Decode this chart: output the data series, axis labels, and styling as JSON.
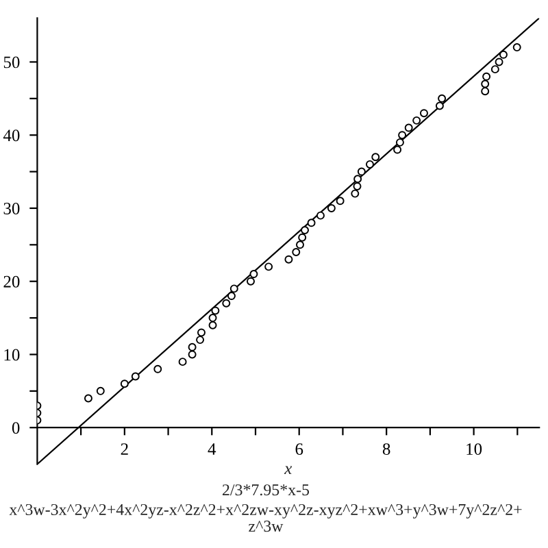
{
  "chart_data": {
    "type": "scatter",
    "xlabel": "x",
    "annotations": [
      "2/3*7.95*x-5",
      "x^3w-3x^2y^2+4x^2yz-x^2z^2+x^2zw-xy^2z-xyz^2+xw^3+y^3w+7y^2z^2+z^3w"
    ],
    "xlim": [
      0,
      11.5
    ],
    "ylim": [
      -5,
      56
    ],
    "xticks": [
      {
        "value": 1,
        "label": null
      },
      2,
      {
        "value": 3,
        "label": null
      },
      4,
      {
        "value": 5,
        "label": null
      },
      6,
      {
        "value": 7,
        "label": null
      },
      8,
      {
        "value": 9,
        "label": null
      },
      10,
      {
        "value": 11,
        "label": null
      }
    ],
    "yticks": [
      0,
      {
        "value": 5,
        "label": null
      },
      10,
      {
        "value": 15,
        "label": null
      },
      20,
      {
        "value": 25,
        "label": null
      },
      30,
      {
        "value": 35,
        "label": null
      },
      40,
      {
        "value": 45,
        "label": null
      },
      50
    ],
    "series": [
      {
        "color": "#000000",
        "marker": "circle",
        "x": [
          0,
          0,
          0,
          1.17,
          1.45,
          2.0,
          2.25,
          2.76,
          3.33,
          3.55,
          3.55,
          3.73,
          3.76,
          4.02,
          4.02,
          4.08,
          4.33,
          4.45,
          4.51,
          4.89,
          4.96,
          5.3,
          5.76,
          5.93,
          6.02,
          6.07,
          6.13,
          6.28,
          6.49,
          6.74,
          6.94,
          7.28,
          7.33,
          7.34,
          7.43,
          7.62,
          7.75,
          8.25,
          8.31,
          8.36,
          8.51,
          8.69,
          8.86,
          9.22,
          9.27,
          10.26,
          10.26,
          10.29,
          10.49,
          10.58,
          10.68,
          10.99
        ],
        "values": [
          1,
          2,
          3,
          4,
          5,
          6,
          7,
          8,
          9,
          10,
          11,
          12,
          13,
          14,
          15,
          16,
          17,
          18,
          19,
          20,
          21,
          22,
          23,
          24,
          25,
          26,
          27,
          28,
          29,
          30,
          31,
          32,
          33,
          34,
          35,
          36,
          37,
          38,
          39,
          40,
          41,
          42,
          43,
          44,
          45,
          46,
          47,
          48,
          49,
          50,
          51,
          52
        ]
      },
      {
        "type": "line",
        "color": "#000000",
        "line_style": "solid",
        "x": [
          0,
          11.5
        ],
        "values": [
          -5,
          56
        ]
      }
    ]
  }
}
